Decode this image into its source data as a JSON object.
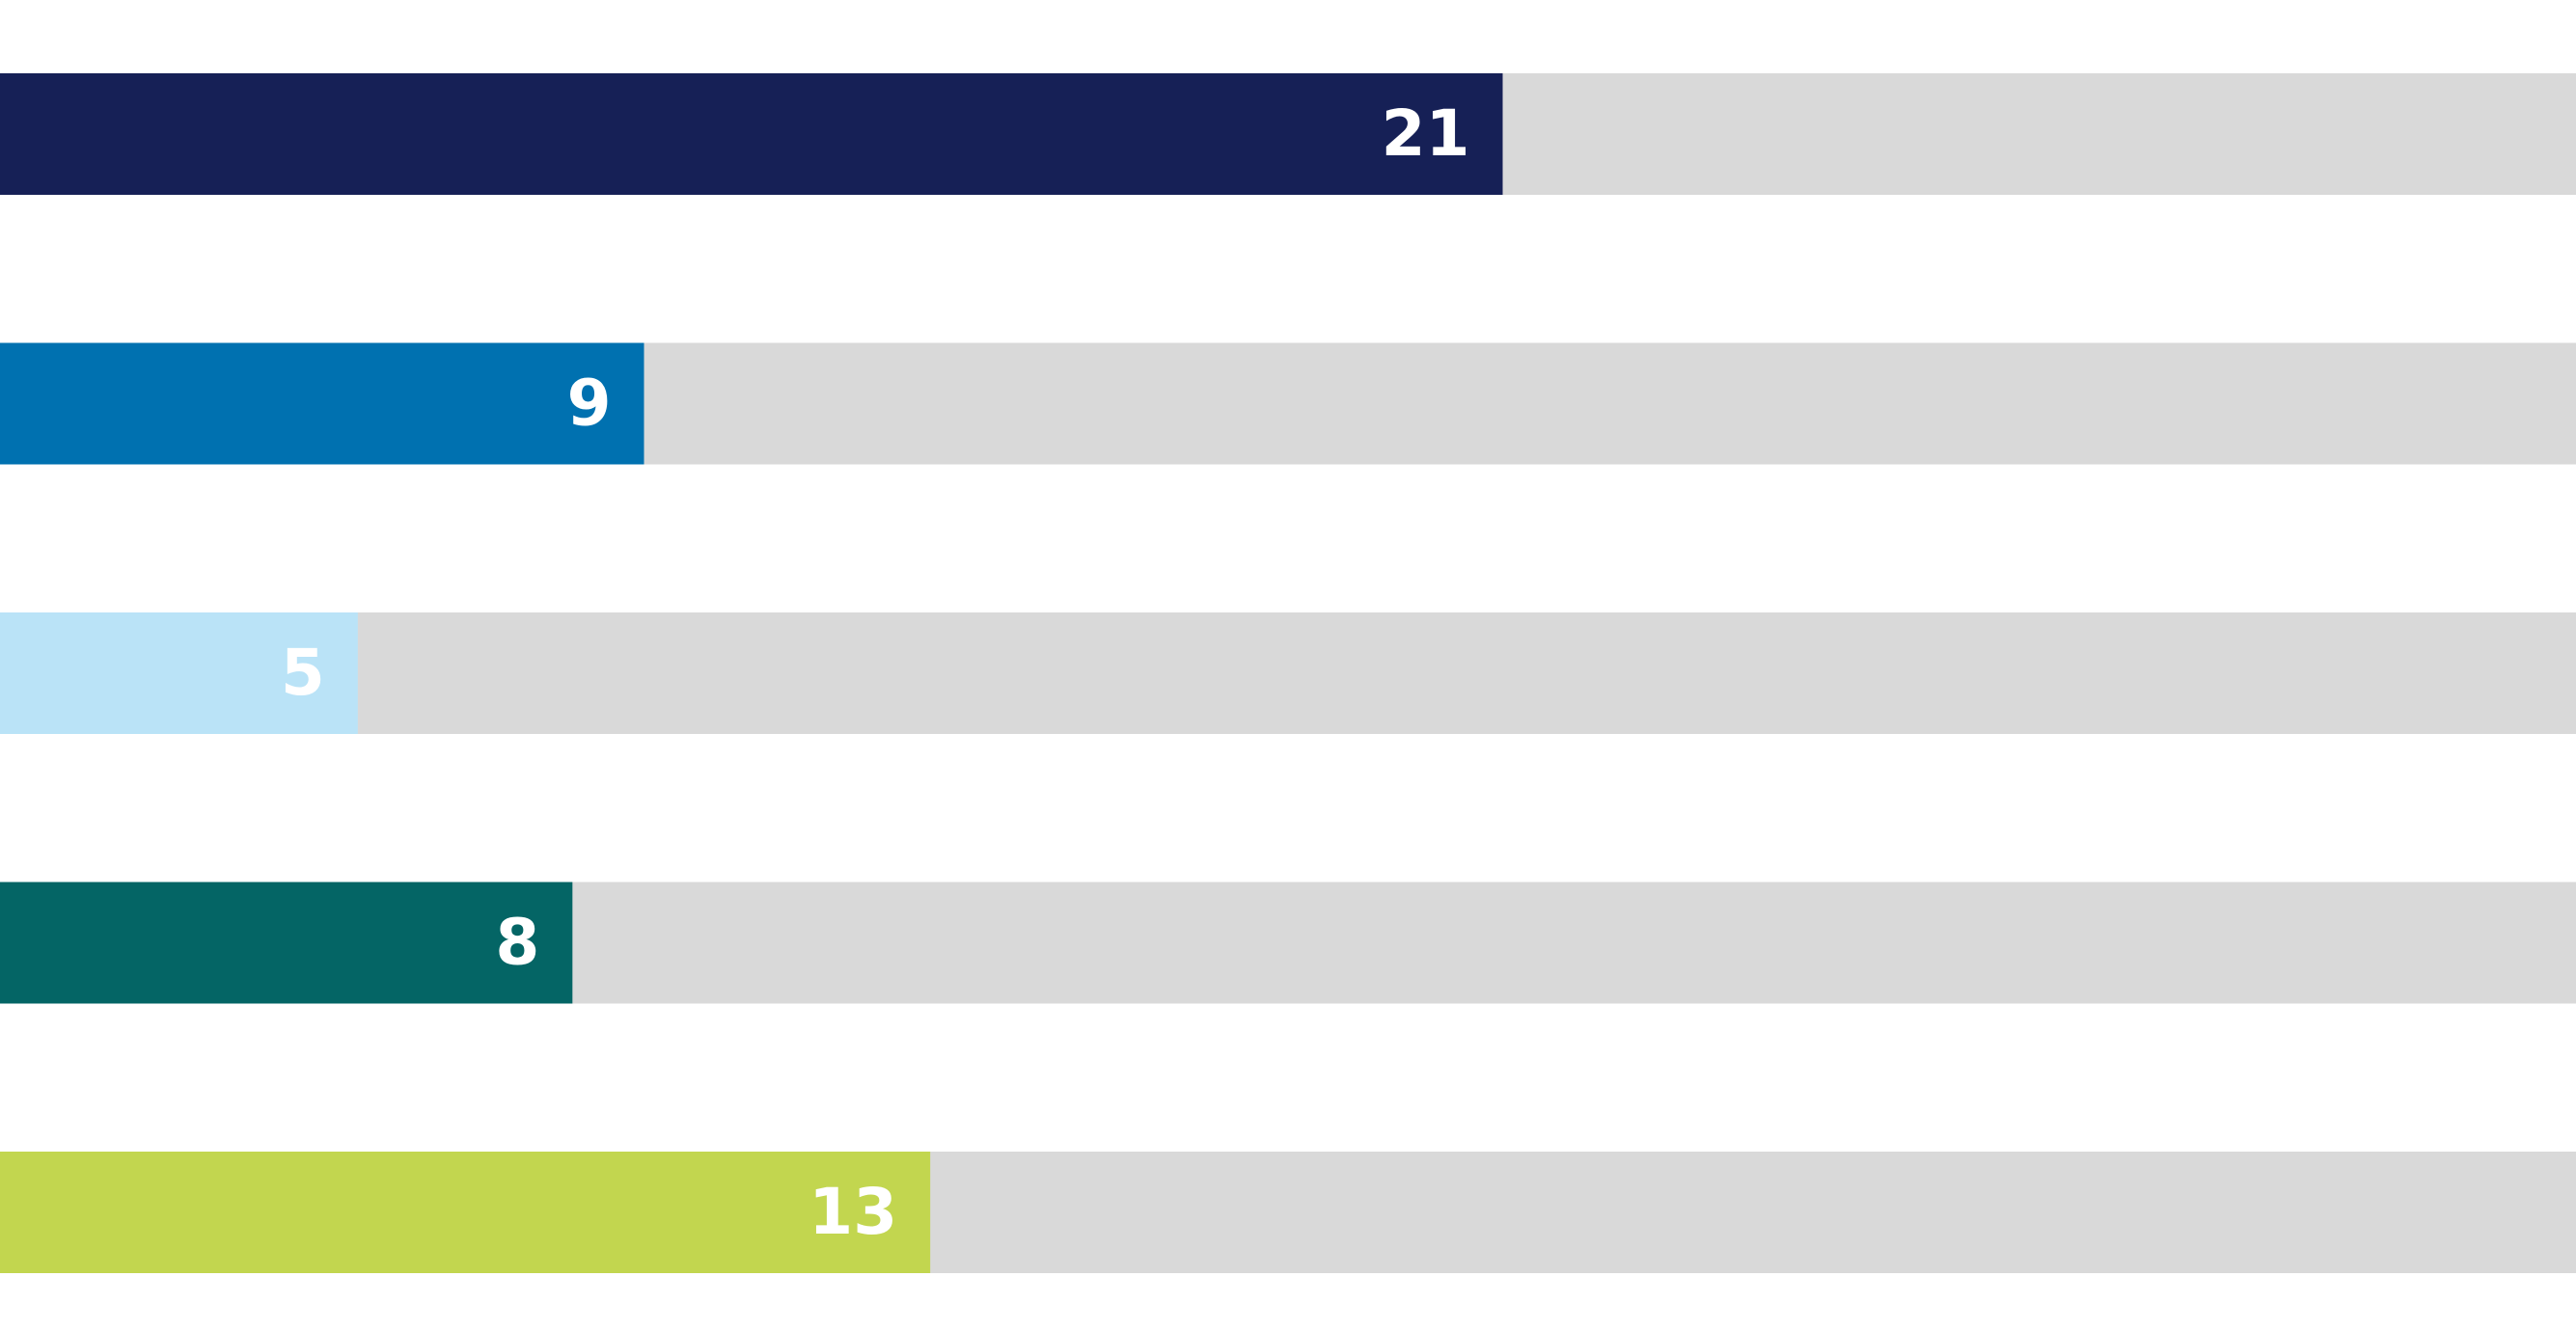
{
  "chart_data": {
    "type": "bar",
    "orientation": "horizontal",
    "values": [
      21,
      9,
      5,
      8,
      13
    ],
    "colors": [
      "#162056",
      "#0071b0",
      "#bae3f7",
      "#046565",
      "#c2d64f"
    ],
    "track_color": "#d9d9d9",
    "label_color": "#ffffff",
    "xlim": [
      0,
      36
    ]
  }
}
